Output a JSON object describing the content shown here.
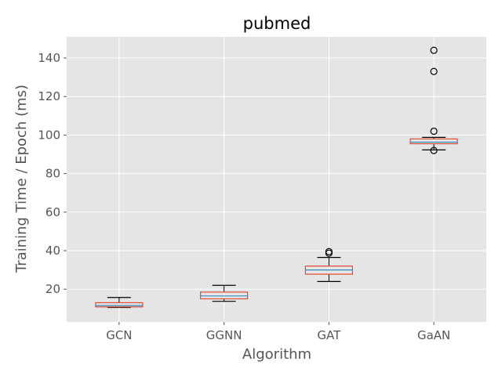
{
  "chart_data": {
    "type": "box",
    "title": "pubmed",
    "xlabel": "Algorithm",
    "ylabel": "Training Time / Epoch (ms)",
    "ylim": [
      3,
      151
    ],
    "yticks": [
      20,
      40,
      60,
      80,
      100,
      120,
      140
    ],
    "grid": true,
    "categories": [
      "GCN",
      "GGNN",
      "GAT",
      "GaAN"
    ],
    "boxes": [
      {
        "name": "GCN",
        "whisker_low": 10.5,
        "q1": 10.8,
        "median": 11.5,
        "q3": 13.0,
        "whisker_high": 15.7,
        "outliers": []
      },
      {
        "name": "GGNN",
        "whisker_low": 13.7,
        "q1": 15.0,
        "median": 16.5,
        "q3": 18.5,
        "whisker_high": 22.0,
        "outliers": []
      },
      {
        "name": "GAT",
        "whisker_low": 24.0,
        "q1": 27.8,
        "median": 30.0,
        "q3": 32.0,
        "whisker_high": 36.5,
        "outliers": [
          38.7,
          39.5
        ]
      },
      {
        "name": "GaAN",
        "whisker_low": 92.3,
        "q1": 95.5,
        "median": 96.3,
        "q3": 98.0,
        "whisker_high": 98.8,
        "outliers": [
          92.0,
          102.0,
          133.0,
          144.0
        ]
      }
    ],
    "colors": {
      "plot_bg": "#e5e5e5",
      "grid": "#ffffff",
      "box": "#e24a33",
      "median": "#348abd",
      "whisker": "#000000",
      "flier": "#000000"
    }
  }
}
